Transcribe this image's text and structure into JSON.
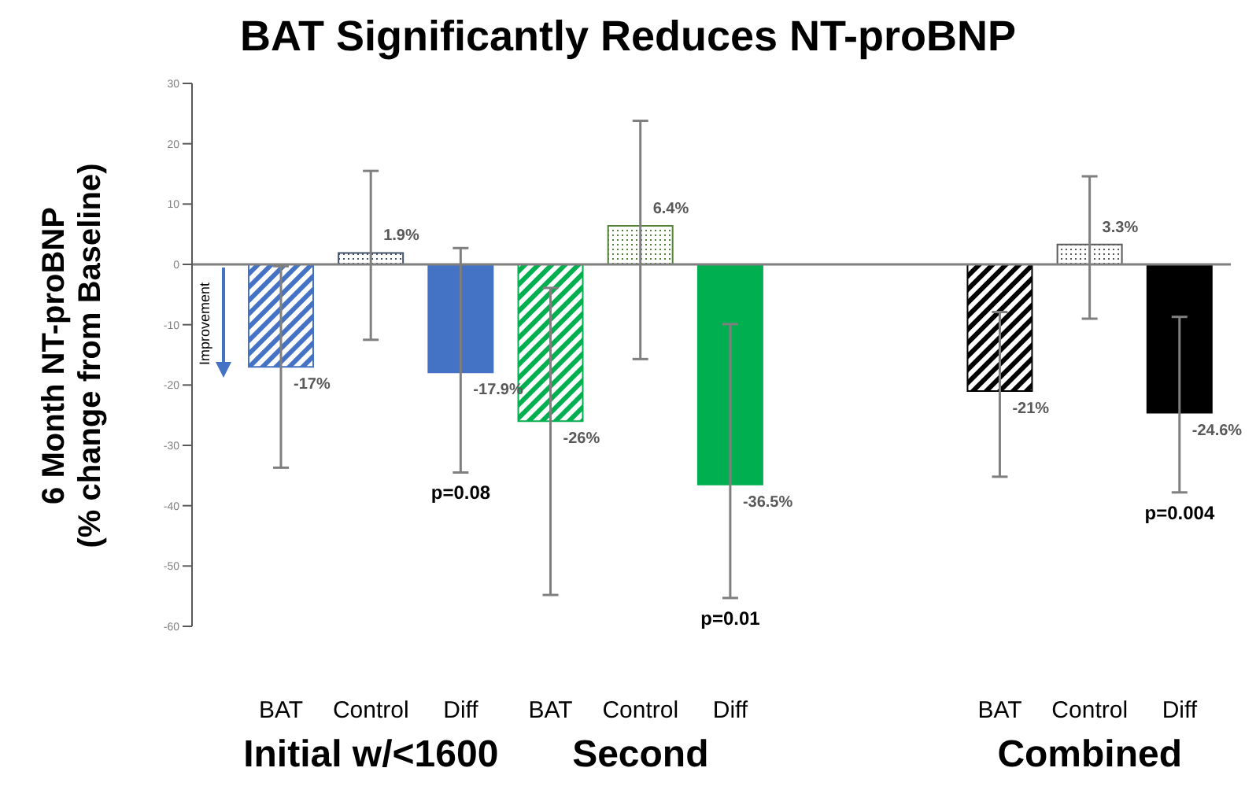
{
  "chart_data": {
    "type": "bar",
    "title": "BAT Significantly Reduces NT-proBNP",
    "ylabel": "6 Month NT-proBNP\n(% change from Baseline)",
    "categories": [
      "BAT",
      "Control",
      "Diff",
      "BAT",
      "Control",
      "Diff",
      null,
      null,
      "BAT",
      "Control",
      "Diff"
    ],
    "values": [
      -17,
      1.9,
      -17.9,
      -26,
      6.4,
      -36.5,
      null,
      null,
      -21,
      3.3,
      -24.6
    ],
    "value_labels": [
      "-17%",
      "1.9%",
      "-17.9%",
      "-26%",
      "6.4%",
      "-36.5%",
      null,
      null,
      "-21%",
      "3.3%",
      "-24.6%"
    ],
    "errors": [
      [
        -33.7,
        -0.3
      ],
      [
        -12.5,
        15.5
      ],
      [
        -34.5,
        2.7
      ],
      [
        -54.8,
        -3.9
      ],
      [
        -15.7,
        23.8
      ],
      [
        -55.3,
        -9.9
      ],
      null,
      null,
      [
        -35.2,
        -7.9
      ],
      [
        -9,
        14.6
      ],
      [
        -37.8,
        -8.7
      ]
    ],
    "colors": [
      "#4472c4",
      "#44546a",
      "#4472c4",
      "#00b050",
      "#548235",
      "#00b050",
      "#ffffff",
      "#ffffff",
      "#000000",
      "#595959",
      "#000000"
    ],
    "ref_lines": [
      {
        "axis": "y",
        "value": 0,
        "color": "#7f7f7f"
      }
    ],
    "ylim": [
      -60,
      30
    ],
    "yticks": [
      -60,
      -50,
      -40,
      -30,
      -20,
      -10,
      0,
      10,
      20,
      30
    ],
    "grid": false,
    "legend": false,
    "annotations": [
      "Initial w/<1600",
      "Second",
      "Combined",
      "p=0.08",
      "p=0.01",
      "p=0.004",
      "Improvement"
    ]
  }
}
